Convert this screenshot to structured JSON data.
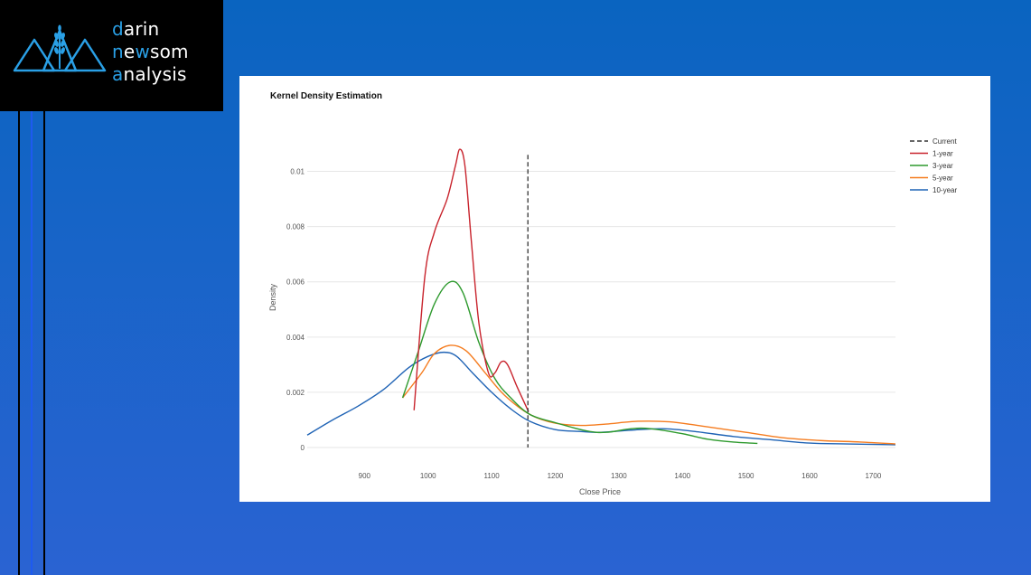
{
  "brand": {
    "line1_initial": "d",
    "line1_rest": "arin",
    "line2_initial": "n",
    "line2_mid": "e",
    "line2_w": "w",
    "line2_rest": "som",
    "line3_initial": "a",
    "line3_rest": "nalysis",
    "accent_color": "#2aa0e6",
    "icon": "mountains-wheat-icon"
  },
  "colors": {
    "current": "#333333",
    "one_year": "#c8232c",
    "three_year": "#2e9a2e",
    "five_year": "#f57c1f",
    "ten_year": "#1f63b5"
  },
  "chart_data": {
    "type": "line",
    "title": "Kernel Density Estimation",
    "xlabel": "Close Price",
    "ylabel": "Density",
    "xlim": [
      810,
      1735
    ],
    "ylim": [
      0,
      0.011
    ],
    "x_ticks": [
      900,
      1000,
      1100,
      1200,
      1300,
      1400,
      1500,
      1600,
      1700
    ],
    "y_ticks": [
      0,
      0.002,
      0.004,
      0.006,
      0.008,
      0.01
    ],
    "y_tick_labels": [
      "0",
      "0.002",
      "0.004",
      "0.006",
      "0.008",
      "0.01"
    ],
    "grid": true,
    "legend_position": "top-right",
    "current": {
      "name": "Current",
      "x": 1157
    },
    "series": [
      {
        "name": "1-year",
        "points": [
          [
            978,
            0.00135
          ],
          [
            995,
            0.0062
          ],
          [
            1010,
            0.0078
          ],
          [
            1030,
            0.009
          ],
          [
            1043,
            0.0102
          ],
          [
            1050,
            0.0108
          ],
          [
            1058,
            0.0102
          ],
          [
            1068,
            0.0075
          ],
          [
            1080,
            0.0045
          ],
          [
            1095,
            0.0027
          ],
          [
            1105,
            0.0027
          ],
          [
            1115,
            0.0031
          ],
          [
            1125,
            0.003
          ],
          [
            1140,
            0.0022
          ],
          [
            1158,
            0.0013
          ]
        ]
      },
      {
        "name": "3-year",
        "points": [
          [
            960,
            0.0018
          ],
          [
            985,
            0.0035
          ],
          [
            1010,
            0.0052
          ],
          [
            1035,
            0.006
          ],
          [
            1055,
            0.0056
          ],
          [
            1080,
            0.0038
          ],
          [
            1105,
            0.0025
          ],
          [
            1130,
            0.0018
          ],
          [
            1160,
            0.0012
          ],
          [
            1200,
            0.0009
          ],
          [
            1250,
            0.0006
          ],
          [
            1280,
            0.00055
          ],
          [
            1320,
            0.00068
          ],
          [
            1350,
            0.00068
          ],
          [
            1400,
            0.0005
          ],
          [
            1440,
            0.0003
          ],
          [
            1480,
            0.0002
          ],
          [
            1518,
            0.00015
          ]
        ]
      },
      {
        "name": "5-year",
        "points": [
          [
            960,
            0.0018
          ],
          [
            990,
            0.0027
          ],
          [
            1010,
            0.0034
          ],
          [
            1035,
            0.0037
          ],
          [
            1060,
            0.0035
          ],
          [
            1090,
            0.0027
          ],
          [
            1120,
            0.0019
          ],
          [
            1160,
            0.0012
          ],
          [
            1200,
            0.00088
          ],
          [
            1240,
            0.0008
          ],
          [
            1280,
            0.00085
          ],
          [
            1330,
            0.00095
          ],
          [
            1380,
            0.00093
          ],
          [
            1430,
            0.00078
          ],
          [
            1500,
            0.00055
          ],
          [
            1560,
            0.00035
          ],
          [
            1620,
            0.00025
          ],
          [
            1680,
            0.0002
          ],
          [
            1735,
            0.00013
          ]
        ]
      },
      {
        "name": "10-year",
        "points": [
          [
            810,
            0.00045
          ],
          [
            850,
            0.001
          ],
          [
            890,
            0.0015
          ],
          [
            930,
            0.0021
          ],
          [
            970,
            0.0029
          ],
          [
            1000,
            0.0033
          ],
          [
            1025,
            0.00345
          ],
          [
            1045,
            0.0033
          ],
          [
            1070,
            0.0027
          ],
          [
            1100,
            0.002
          ],
          [
            1130,
            0.0014
          ],
          [
            1160,
            0.00095
          ],
          [
            1200,
            0.00065
          ],
          [
            1240,
            0.00058
          ],
          [
            1270,
            0.00055
          ],
          [
            1320,
            0.00063
          ],
          [
            1370,
            0.00068
          ],
          [
            1420,
            0.00058
          ],
          [
            1480,
            0.0004
          ],
          [
            1540,
            0.00028
          ],
          [
            1600,
            0.00016
          ],
          [
            1660,
            0.00013
          ],
          [
            1735,
            0.0001
          ]
        ]
      }
    ]
  }
}
